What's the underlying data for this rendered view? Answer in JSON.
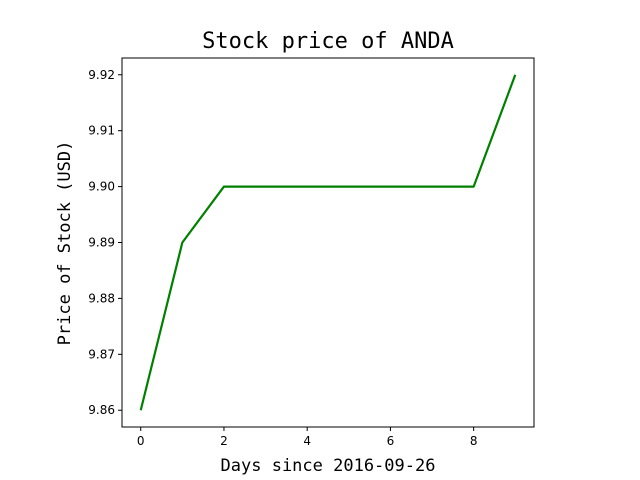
{
  "chart_data": {
    "type": "line",
    "title": "Stock price of ANDA",
    "xlabel": "Days since 2016-09-26",
    "ylabel": "Price of Stock (USD)",
    "x": [
      0,
      1,
      2,
      3,
      4,
      5,
      6,
      7,
      8,
      9
    ],
    "xlim": [
      -0.45,
      9.45
    ],
    "ylim": [
      9.857,
      9.923
    ],
    "xticks": [
      0,
      2,
      4,
      6,
      8
    ],
    "xtick_labels": [
      "0",
      "2",
      "4",
      "6",
      "8"
    ],
    "yticks": [
      9.86,
      9.87,
      9.88,
      9.89,
      9.9,
      9.91,
      9.92
    ],
    "ytick_labels": [
      "9.86",
      "9.87",
      "9.88",
      "9.89",
      "9.90",
      "9.91",
      "9.92"
    ],
    "grid": false,
    "series": [
      {
        "color": "#008000",
        "values": [
          9.86,
          9.89,
          9.9,
          9.9,
          9.9,
          9.9,
          9.9,
          9.9,
          9.9,
          9.92
        ]
      }
    ]
  }
}
